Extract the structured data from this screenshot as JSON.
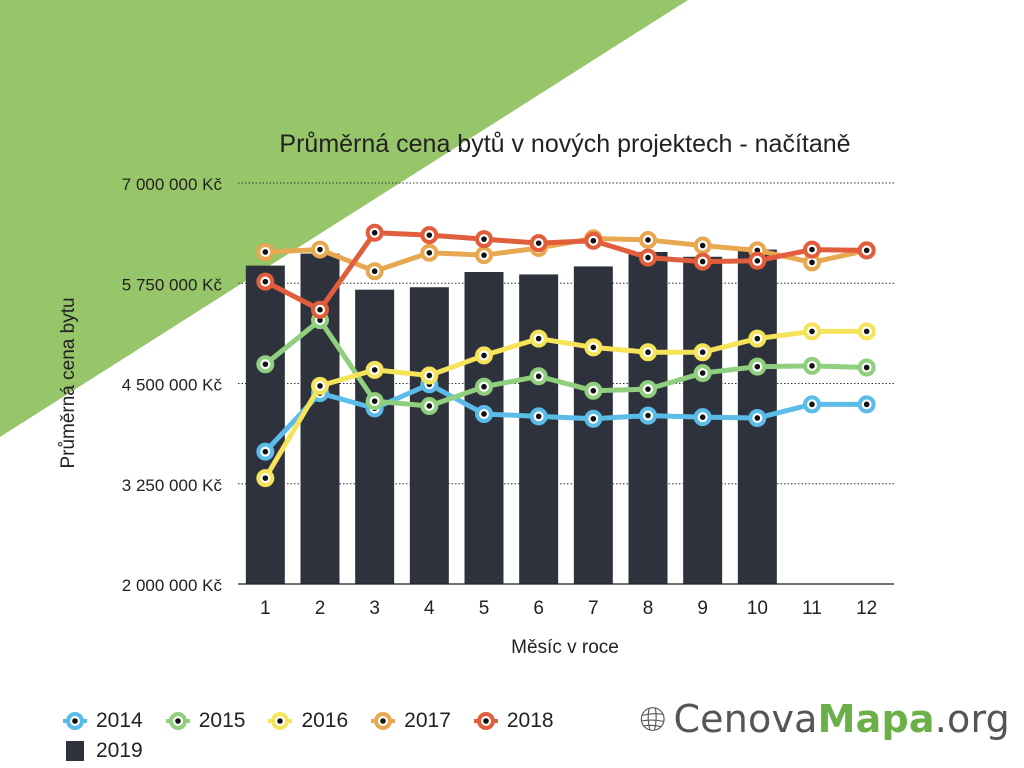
{
  "colors": {
    "background_triangle": "#97c66a",
    "bars": "#2e323d",
    "series_2014": "#5bbce8",
    "series_2015": "#8fcf7d",
    "series_2016": "#f5e45a",
    "series_2017": "#e8a851",
    "series_2018": "#e25d3c",
    "marker_dot": "#111111",
    "grid": "#333333"
  },
  "logo": {
    "part1": "Cenova",
    "part2": "Mapa",
    "part3": ".org",
    "icon": "globe-grid-icon"
  },
  "chart_data": {
    "type": "line",
    "title": "Průměrná cena bytů v nových projektech - načítaně",
    "xlabel": "Měsíc v roce",
    "ylabel": "Průměrná cena bytu",
    "categories": [
      "1",
      "2",
      "3",
      "4",
      "5",
      "6",
      "7",
      "8",
      "9",
      "10",
      "11",
      "12"
    ],
    "ylim": [
      2000000,
      7000000
    ],
    "yticks": [
      2000000,
      3250000,
      4500000,
      5750000,
      7000000
    ],
    "ytick_labels": [
      "2 000 000 Kč",
      "3 250 000 Kč",
      "4 500 000 Kč",
      "5 750 000 Kč",
      "7 000 000 Kč"
    ],
    "grid": true,
    "legend_position": "bottom-left",
    "bars": {
      "name": "2019",
      "values": [
        5970000,
        6120000,
        5670000,
        5700000,
        5890000,
        5860000,
        5960000,
        6140000,
        6080000,
        6170000,
        null,
        null
      ]
    },
    "series": [
      {
        "name": "2014",
        "values": [
          3650000,
          4380000,
          4190000,
          4490000,
          4120000,
          4090000,
          4060000,
          4100000,
          4080000,
          4070000,
          4240000,
          4240000
        ]
      },
      {
        "name": "2015",
        "values": [
          4740000,
          5290000,
          4280000,
          4220000,
          4460000,
          4590000,
          4410000,
          4430000,
          4630000,
          4710000,
          4720000,
          4700000
        ]
      },
      {
        "name": "2016",
        "values": [
          3320000,
          4470000,
          4670000,
          4600000,
          4850000,
          5060000,
          4950000,
          4890000,
          4890000,
          5060000,
          5150000,
          5150000
        ]
      },
      {
        "name": "2017",
        "values": [
          6140000,
          6170000,
          5900000,
          6130000,
          6100000,
          6190000,
          6310000,
          6290000,
          6220000,
          6160000,
          6010000,
          6160000
        ]
      },
      {
        "name": "2018",
        "values": [
          5770000,
          5420000,
          6380000,
          6350000,
          6300000,
          6250000,
          6280000,
          6070000,
          6020000,
          6030000,
          6170000,
          6160000
        ]
      }
    ]
  }
}
